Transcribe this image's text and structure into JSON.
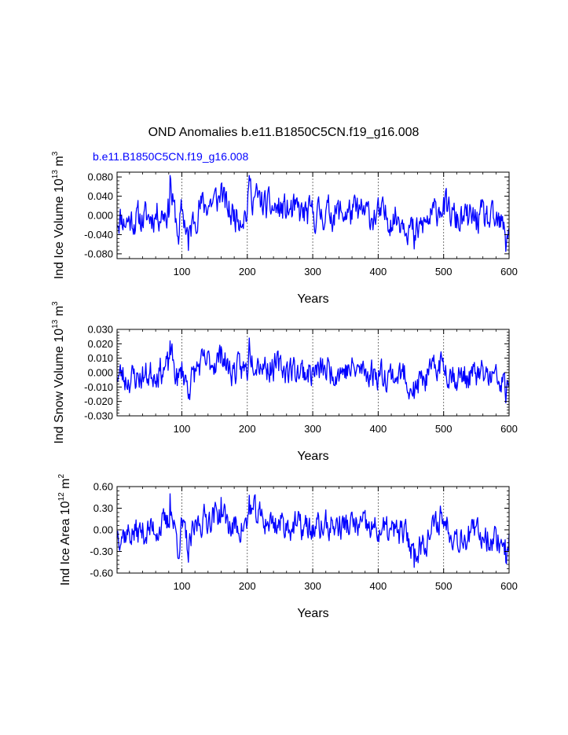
{
  "figure": {
    "main_title": "OND Anomalies b.e11.B1850C5CN.f19_g16.008",
    "case_label": "b.e11.B1850C5CN.f19_g16.008",
    "line_color": "#0000ff",
    "axis_color": "#000000",
    "grid_color": "#555555"
  },
  "chart_data": [
    {
      "type": "line",
      "id": "ice-volume",
      "ylabel_main": "Ind Ice Volume 10",
      "ylabel_exp": "13",
      "ylabel_unit": " m",
      "ylabel_unit_exp": "3",
      "xlabel": "Years",
      "xlim": [
        1,
        600
      ],
      "ylim": [
        -0.09,
        0.09
      ],
      "xticks": [
        100,
        200,
        300,
        400,
        500,
        600
      ],
      "xtick_labels": [
        "100",
        "200",
        "300",
        "400",
        "500",
        "600"
      ],
      "yticks": [
        -0.08,
        -0.04,
        0.0,
        0.04,
        0.08
      ],
      "ytick_labels": [
        "-0.080",
        "-0.040",
        "0.000",
        "0.040",
        "0.080"
      ],
      "grid_x": [
        100,
        200,
        300,
        400,
        500
      ],
      "series": [
        {
          "name": "b.e11.B1850C5CN.f19_g16.008",
          "amplitude": 0.028,
          "clip": 0.083,
          "seed": 11,
          "anchors": [
            [
              10,
              -0.02
            ],
            [
              45,
              -0.01
            ],
            [
              60,
              0.005
            ],
            [
              80,
              0.02
            ],
            [
              82,
              0.083
            ],
            [
              95,
              -0.06
            ],
            [
              100,
              0.02
            ],
            [
              110,
              -0.073
            ],
            [
              125,
              0.03
            ],
            [
              160,
              0.065
            ],
            [
              175,
              0.005
            ],
            [
              200,
              0.01
            ],
            [
              203,
              0.085
            ],
            [
              230,
              0.03
            ],
            [
              255,
              0.02
            ],
            [
              300,
              0.0
            ],
            [
              320,
              0.01
            ],
            [
              370,
              0.01
            ],
            [
              390,
              0.0
            ],
            [
              440,
              -0.01
            ],
            [
              455,
              -0.07
            ],
            [
              485,
              0.0
            ],
            [
              495,
              0.045
            ],
            [
              520,
              -0.02
            ],
            [
              560,
              -0.01
            ],
            [
              590,
              -0.045
            ],
            [
              595,
              -0.075
            ],
            [
              600,
              -0.03
            ]
          ]
        }
      ]
    },
    {
      "type": "line",
      "id": "snow-volume",
      "ylabel_main": "Ind Snow Volume 10",
      "ylabel_exp": "13",
      "ylabel_unit": " m",
      "ylabel_unit_exp": "3",
      "xlabel": "Years",
      "xlim": [
        1,
        600
      ],
      "ylim": [
        -0.03,
        0.03
      ],
      "xticks": [
        100,
        200,
        300,
        400,
        500,
        600
      ],
      "xtick_labels": [
        "100",
        "200",
        "300",
        "400",
        "500",
        "600"
      ],
      "yticks": [
        -0.03,
        -0.02,
        -0.01,
        0.0,
        0.01,
        0.02,
        0.03
      ],
      "ytick_labels": [
        "-0.030",
        "-0.020",
        "-0.010",
        "0.000",
        "0.010",
        "0.020",
        "0.030"
      ],
      "grid_x": [
        100,
        200,
        300,
        400,
        500
      ],
      "series": [
        {
          "name": "b.e11.B1850C5CN.f19_g16.008",
          "amplitude": 0.0085,
          "clip": 0.025,
          "seed": 23,
          "anchors": [
            [
              10,
              -0.008
            ],
            [
              45,
              -0.004
            ],
            [
              60,
              0.002
            ],
            [
              80,
              0.006
            ],
            [
              82,
              0.022
            ],
            [
              95,
              -0.012
            ],
            [
              100,
              0.005
            ],
            [
              110,
              -0.018
            ],
            [
              125,
              0.008
            ],
            [
              160,
              0.018
            ],
            [
              175,
              0.002
            ],
            [
              200,
              0.004
            ],
            [
              203,
              0.024
            ],
            [
              230,
              0.008
            ],
            [
              255,
              0.006
            ],
            [
              300,
              0.0
            ],
            [
              320,
              0.003
            ],
            [
              370,
              0.003
            ],
            [
              390,
              0.0
            ],
            [
              440,
              -0.004
            ],
            [
              455,
              -0.018
            ],
            [
              485,
              0.0
            ],
            [
              495,
              0.013
            ],
            [
              520,
              -0.006
            ],
            [
              560,
              -0.003
            ],
            [
              590,
              -0.013
            ],
            [
              595,
              -0.021
            ],
            [
              600,
              -0.01
            ]
          ]
        }
      ]
    },
    {
      "type": "line",
      "id": "ice-area",
      "ylabel_main": "Ind Ice Area 10",
      "ylabel_exp": "12",
      "ylabel_unit": " m",
      "ylabel_unit_exp": "2",
      "xlabel": "Years",
      "xlim": [
        1,
        600
      ],
      "ylim": [
        -0.6,
        0.6
      ],
      "xticks": [
        100,
        200,
        300,
        400,
        500,
        600
      ],
      "xtick_labels": [
        "100",
        "200",
        "300",
        "400",
        "500",
        "600"
      ],
      "yticks": [
        -0.6,
        -0.3,
        0.0,
        0.3,
        0.6
      ],
      "ytick_labels": [
        "-0.60",
        "-0.30",
        "0.00",
        "0.30",
        "0.60"
      ],
      "grid_x": [
        100,
        200,
        300,
        400,
        500
      ],
      "series": [
        {
          "name": "b.e11.B1850C5CN.f19_g16.008",
          "amplitude": 0.17,
          "clip": 0.5,
          "seed": 37,
          "anchors": [
            [
              10,
              -0.1
            ],
            [
              45,
              -0.05
            ],
            [
              60,
              0.05
            ],
            [
              80,
              0.15
            ],
            [
              82,
              0.5
            ],
            [
              95,
              -0.4
            ],
            [
              100,
              0.1
            ],
            [
              110,
              -0.45
            ],
            [
              125,
              0.2
            ],
            [
              160,
              0.45
            ],
            [
              175,
              0.05
            ],
            [
              200,
              0.1
            ],
            [
              203,
              0.48
            ],
            [
              230,
              0.2
            ],
            [
              255,
              0.15
            ],
            [
              300,
              0.0
            ],
            [
              320,
              0.1
            ],
            [
              370,
              0.1
            ],
            [
              390,
              0.0
            ],
            [
              440,
              -0.1
            ],
            [
              455,
              -0.52
            ],
            [
              485,
              0.0
            ],
            [
              495,
              0.33
            ],
            [
              520,
              -0.15
            ],
            [
              560,
              -0.1
            ],
            [
              590,
              -0.3
            ],
            [
              595,
              -0.45
            ],
            [
              600,
              -0.2
            ]
          ]
        }
      ]
    }
  ]
}
